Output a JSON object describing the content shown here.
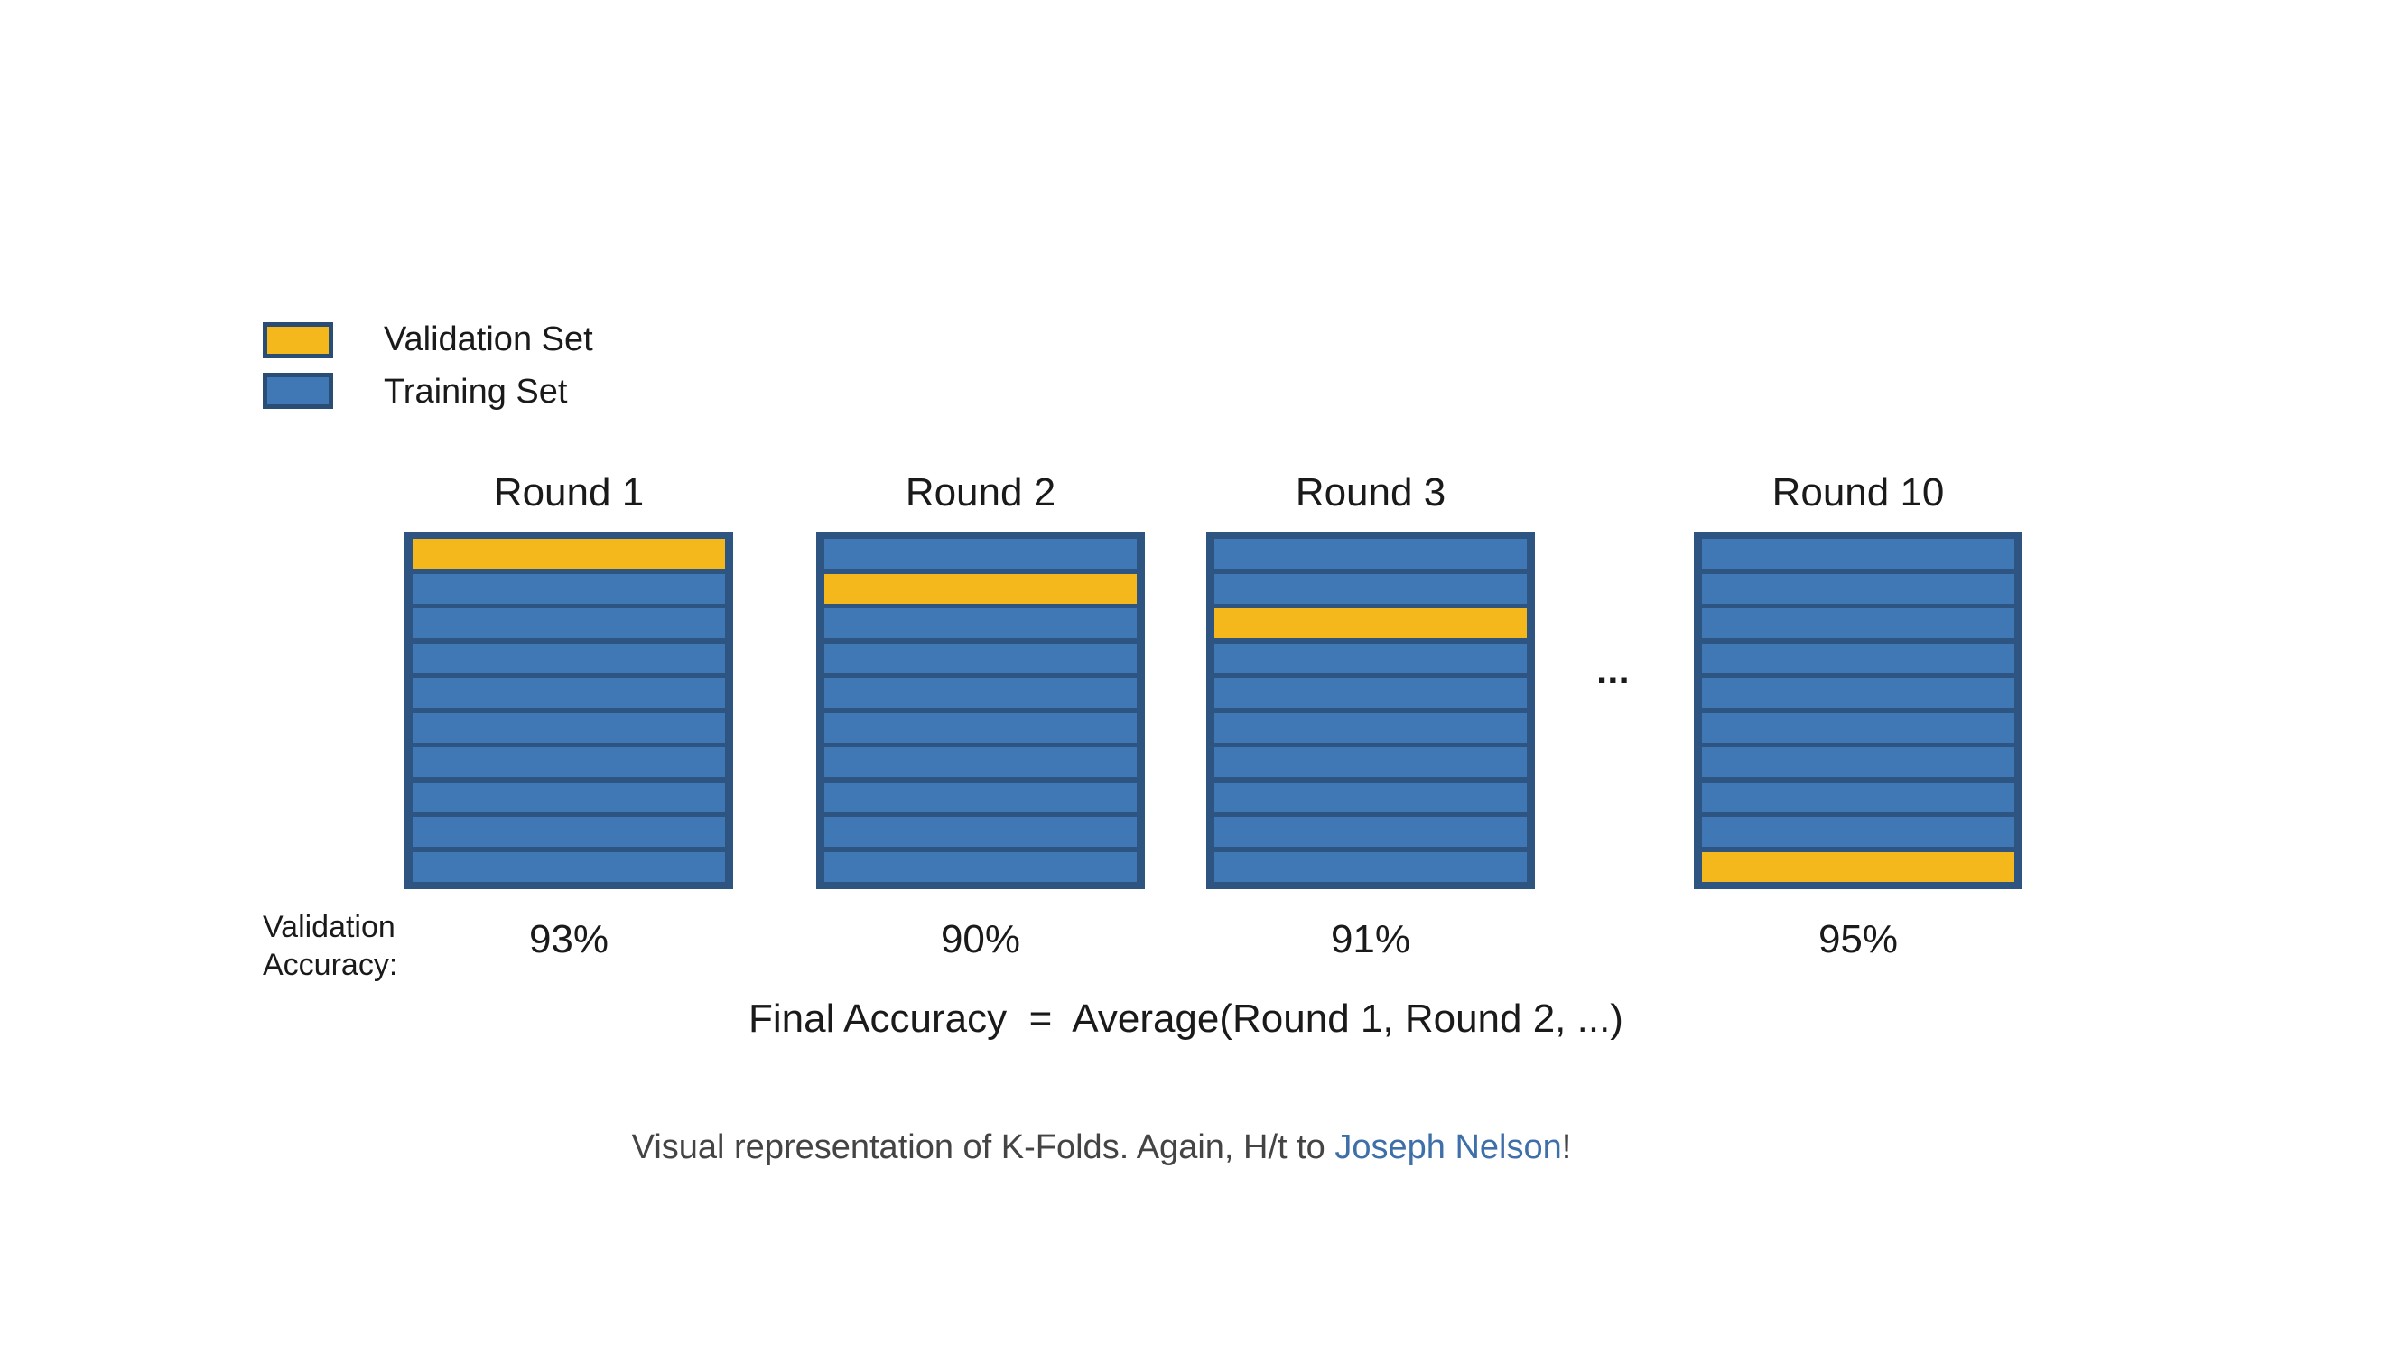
{
  "legend": {
    "validation_label": "Validation Set",
    "training_label": "Training Set",
    "validation_color": "#f5b81c",
    "training_color": "#3f78b4"
  },
  "rounds": [
    {
      "title": "Round 1",
      "accuracy": "93%",
      "validation_fold": 1
    },
    {
      "title": "Round 2",
      "accuracy": "90%",
      "validation_fold": 2
    },
    {
      "title": "Round 3",
      "accuracy": "91%",
      "validation_fold": 3
    },
    {
      "title": "Round 10",
      "accuracy": "95%",
      "validation_fold": 10
    }
  ],
  "folds_per_round": 10,
  "ellipsis": "...",
  "accuracy_label": [
    "Validation",
    "Accuracy:"
  ],
  "formula": "Final Accuracy  =  Average(Round 1, Round 2, ...)",
  "caption": {
    "text": "Visual representation of K-Folds. Again, H/t to ",
    "link": "Joseph Nelson",
    "suffix": "!"
  }
}
